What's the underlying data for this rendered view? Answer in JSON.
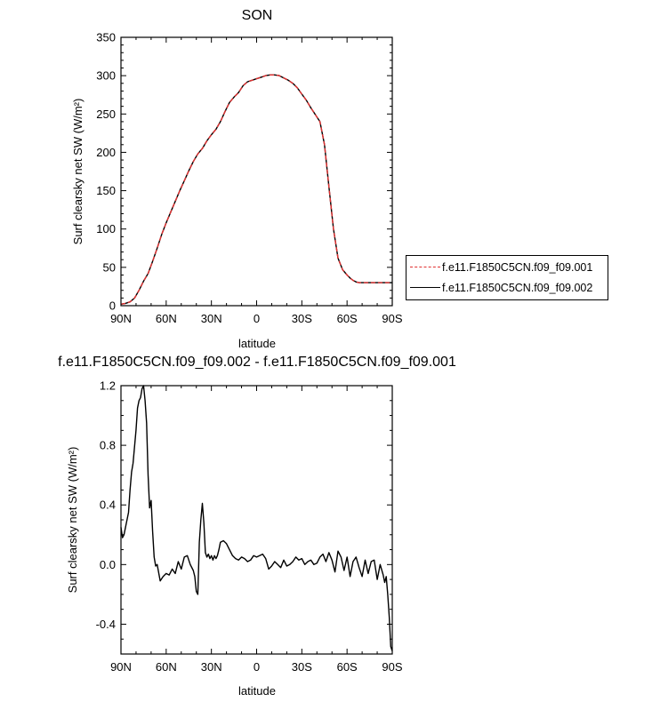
{
  "chart_data": [
    {
      "type": "line",
      "title": "SON",
      "xlabel": "latitude",
      "ylabel": "Surf clearsky net SW (W/m²)",
      "xticks": [
        "90N",
        "60N",
        "30N",
        "0",
        "30S",
        "60S",
        "90S"
      ],
      "yticks": [
        "0",
        "50",
        "100",
        "150",
        "200",
        "250",
        "300",
        "350"
      ],
      "ylim": [
        0,
        350
      ],
      "xlim": [
        90,
        -90
      ],
      "legend_placement": "outside-right",
      "series": [
        {
          "name": "f.e11.F1850C5CN.f09_f09.001",
          "color": "#e03030",
          "dash": "dashed",
          "x": [
            90,
            87,
            84,
            81,
            78,
            75,
            72,
            69,
            66,
            63,
            60,
            57,
            54,
            51,
            48,
            45,
            42,
            39,
            36,
            33,
            30,
            27,
            24,
            21,
            18,
            15,
            12,
            9,
            6,
            3,
            0,
            -3,
            -6,
            -9,
            -12,
            -15,
            -18,
            -21,
            -24,
            -27,
            -30,
            -33,
            -36,
            -39,
            -42,
            -45,
            -48,
            -51,
            -54,
            -57,
            -60,
            -62,
            -64,
            -66,
            -68,
            -70,
            -72,
            -74,
            -76,
            -78,
            -80,
            -83,
            -86,
            -90
          ],
          "values": [
            2,
            3,
            5,
            10,
            20,
            32,
            42,
            58,
            75,
            93,
            108,
            122,
            136,
            150,
            163,
            176,
            188,
            198,
            205,
            215,
            223,
            230,
            240,
            253,
            265,
            272,
            278,
            287,
            292,
            294,
            296,
            298,
            300,
            301,
            301,
            300,
            297,
            294,
            290,
            284,
            276,
            268,
            258,
            249,
            240,
            210,
            155,
            100,
            62,
            47,
            40,
            36,
            33,
            31,
            30,
            30,
            30,
            30,
            30,
            30,
            30,
            30,
            30,
            30
          ]
        },
        {
          "name": "f.e11.F1850C5CN.f09_f09.002",
          "color": "#000000",
          "dash": "solid",
          "x": [
            90,
            87,
            84,
            81,
            78,
            75,
            72,
            69,
            66,
            63,
            60,
            57,
            54,
            51,
            48,
            45,
            42,
            39,
            36,
            33,
            30,
            27,
            24,
            21,
            18,
            15,
            12,
            9,
            6,
            3,
            0,
            -3,
            -6,
            -9,
            -12,
            -15,
            -18,
            -21,
            -24,
            -27,
            -30,
            -33,
            -36,
            -39,
            -42,
            -45,
            -48,
            -51,
            -54,
            -57,
            -60,
            -62,
            -64,
            -66,
            -68,
            -70,
            -72,
            -74,
            -76,
            -78,
            -80,
            -83,
            -86,
            -90
          ],
          "values": [
            2,
            3,
            5,
            10,
            20,
            32,
            42,
            58,
            75,
            93,
            108,
            122,
            136,
            150,
            163,
            176,
            188,
            198,
            205,
            215,
            223,
            230,
            240,
            253,
            265,
            272,
            278,
            287,
            292,
            294,
            296,
            298,
            300,
            301,
            301,
            300,
            297,
            294,
            290,
            284,
            276,
            268,
            258,
            249,
            240,
            210,
            155,
            100,
            62,
            47,
            40,
            36,
            33,
            31,
            30,
            30,
            30,
            30,
            30,
            30,
            30,
            30,
            30,
            30
          ]
        }
      ]
    },
    {
      "type": "line",
      "title": "f.e11.F1850C5CN.f09_f09.002 - f.e11.F1850C5CN.f09_f09.001",
      "xlabel": "latitude",
      "ylabel": "Surf clearsky net SW (W/m²)",
      "xticks": [
        "90N",
        "60N",
        "30N",
        "0",
        "30S",
        "60S",
        "90S"
      ],
      "yticks": [
        "-0.4",
        "0.0",
        "0.4",
        "0.8",
        "1.2"
      ],
      "ylim": [
        -0.6,
        1.2
      ],
      "xlim": [
        90,
        -90
      ],
      "series": [
        {
          "color": "#000000",
          "dash": "solid",
          "x": [
            90,
            89,
            88,
            86,
            85,
            84,
            83,
            82,
            80,
            79,
            78,
            77,
            76,
            75,
            74,
            73,
            72,
            71,
            70,
            69,
            68,
            67,
            66,
            64,
            62,
            60,
            58,
            56,
            54,
            52,
            50,
            48,
            46,
            44,
            42,
            41,
            40,
            39,
            38,
            37,
            36,
            35,
            34,
            33,
            32,
            31,
            30,
            29,
            28,
            27,
            26,
            25,
            24,
            22,
            20,
            18,
            16,
            14,
            12,
            10,
            8,
            6,
            4,
            2,
            0,
            -2,
            -4,
            -6,
            -8,
            -10,
            -12,
            -14,
            -16,
            -18,
            -20,
            -22,
            -24,
            -26,
            -28,
            -30,
            -32,
            -34,
            -36,
            -38,
            -40,
            -42,
            -44,
            -46,
            -48,
            -50,
            -52,
            -54,
            -56,
            -58,
            -60,
            -62,
            -64,
            -66,
            -68,
            -70,
            -72,
            -74,
            -76,
            -78,
            -80,
            -82,
            -84,
            -85,
            -86,
            -87,
            -88,
            -89,
            -90
          ],
          "values": [
            0.25,
            0.18,
            0.2,
            0.3,
            0.35,
            0.5,
            0.62,
            0.68,
            0.9,
            1.05,
            1.1,
            1.12,
            1.18,
            1.2,
            1.1,
            0.95,
            0.6,
            0.38,
            0.43,
            0.22,
            0.05,
            -0.01,
            0.0,
            -0.11,
            -0.08,
            -0.06,
            -0.07,
            -0.03,
            -0.06,
            0.02,
            -0.03,
            0.05,
            0.06,
            0.0,
            -0.04,
            -0.08,
            -0.18,
            -0.2,
            0.15,
            0.3,
            0.41,
            0.28,
            0.08,
            0.05,
            0.07,
            0.04,
            0.06,
            0.03,
            0.06,
            0.04,
            0.06,
            0.1,
            0.15,
            0.16,
            0.14,
            0.1,
            0.06,
            0.04,
            0.03,
            0.05,
            0.04,
            0.02,
            0.03,
            0.06,
            0.05,
            0.06,
            0.07,
            0.04,
            -0.03,
            -0.01,
            0.02,
            0.0,
            -0.02,
            0.03,
            -0.01,
            0.0,
            0.02,
            0.05,
            0.03,
            0.04,
            0.0,
            0.02,
            0.03,
            0.0,
            0.01,
            0.05,
            0.07,
            0.02,
            0.08,
            0.03,
            -0.05,
            0.09,
            0.05,
            -0.04,
            0.05,
            -0.08,
            0.02,
            0.05,
            -0.02,
            -0.08,
            0.03,
            -0.06,
            0.02,
            0.03,
            -0.1,
            0.0,
            -0.07,
            -0.12,
            -0.08,
            -0.2,
            -0.35,
            -0.55,
            -0.58
          ]
        }
      ]
    }
  ]
}
